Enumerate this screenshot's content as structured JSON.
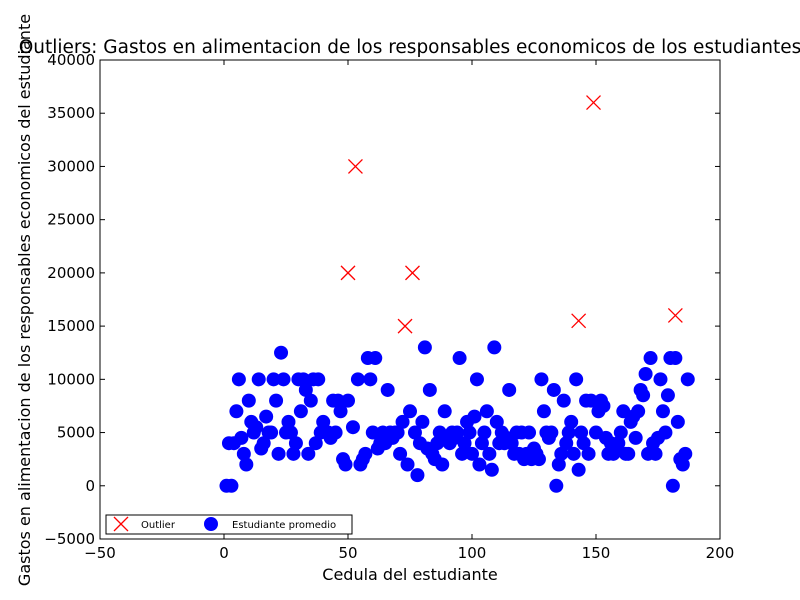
{
  "chart_data": {
    "type": "scatter",
    "title": "Outliers: Gastos en alimentacion de los responsables economicos de los estudiantes",
    "xlabel": "Cedula del estudiante",
    "ylabel": "Gastos en alimentacion de los responsables economicos del estudiante",
    "xlim": [
      -50,
      200
    ],
    "ylim": [
      -5000,
      40000
    ],
    "xticks": [
      "−50",
      "0",
      "50",
      "100",
      "150",
      "200"
    ],
    "yticks": [
      "−5000",
      "0",
      "5000",
      "10000",
      "15000",
      "20000",
      "25000",
      "30000",
      "35000",
      "40000"
    ],
    "grid": false,
    "legend_position": "bottom-left",
    "series": [
      {
        "name": "Outlier",
        "marker": "x",
        "color": "#ff0000",
        "points": [
          [
            50,
            20000
          ],
          [
            53,
            30000
          ],
          [
            73,
            15000
          ],
          [
            76,
            20000
          ],
          [
            143,
            15500
          ],
          [
            149,
            36000
          ],
          [
            182,
            16000
          ]
        ]
      },
      {
        "name": "Estudiante promedio",
        "marker": "circle",
        "color": "#0000ff",
        "points": [
          [
            1,
            0
          ],
          [
            2,
            4000
          ],
          [
            3,
            0
          ],
          [
            4,
            4000
          ],
          [
            5,
            7000
          ],
          [
            6,
            10000
          ],
          [
            7,
            4500
          ],
          [
            8,
            3000
          ],
          [
            9,
            2000
          ],
          [
            10,
            8000
          ],
          [
            11,
            6000
          ],
          [
            12,
            5000
          ],
          [
            13,
            5500
          ],
          [
            14,
            10000
          ],
          [
            15,
            3500
          ],
          [
            16,
            4000
          ],
          [
            17,
            6500
          ],
          [
            18,
            5000
          ],
          [
            19,
            5000
          ],
          [
            20,
            10000
          ],
          [
            21,
            8000
          ],
          [
            22,
            3000
          ],
          [
            23,
            12500
          ],
          [
            24,
            10000
          ],
          [
            25,
            5000
          ],
          [
            26,
            6000
          ],
          [
            27,
            5000
          ],
          [
            28,
            3000
          ],
          [
            29,
            4000
          ],
          [
            30,
            10000
          ],
          [
            31,
            7000
          ],
          [
            32,
            10000
          ],
          [
            33,
            9000
          ],
          [
            34,
            3000
          ],
          [
            35,
            8000
          ],
          [
            36,
            10000
          ],
          [
            37,
            4000
          ],
          [
            38,
            10000
          ],
          [
            39,
            5000
          ],
          [
            40,
            6000
          ],
          [
            42,
            5000
          ],
          [
            43,
            4500
          ],
          [
            44,
            8000
          ],
          [
            45,
            5000
          ],
          [
            46,
            8000
          ],
          [
            47,
            7000
          ],
          [
            48,
            2500
          ],
          [
            49,
            2000
          ],
          [
            50,
            8000
          ],
          [
            52,
            5500
          ],
          [
            54,
            10000
          ],
          [
            55,
            2000
          ],
          [
            56,
            2500
          ],
          [
            57,
            3000
          ],
          [
            58,
            12000
          ],
          [
            59,
            10000
          ],
          [
            60,
            5000
          ],
          [
            61,
            12000
          ],
          [
            62,
            3500
          ],
          [
            63,
            4000
          ],
          [
            64,
            5000
          ],
          [
            65,
            4000
          ],
          [
            66,
            9000
          ],
          [
            67,
            5000
          ],
          [
            68,
            4500
          ],
          [
            69,
            5000
          ],
          [
            70,
            5000
          ],
          [
            71,
            3000
          ],
          [
            72,
            6000
          ],
          [
            74,
            2000
          ],
          [
            75,
            7000
          ],
          [
            77,
            5000
          ],
          [
            78,
            1000
          ],
          [
            79,
            4000
          ],
          [
            80,
            6000
          ],
          [
            81,
            13000
          ],
          [
            82,
            3500
          ],
          [
            83,
            9000
          ],
          [
            84,
            3000
          ],
          [
            85,
            2500
          ],
          [
            86,
            4000
          ],
          [
            87,
            5000
          ],
          [
            88,
            2000
          ],
          [
            89,
            7000
          ],
          [
            90,
            4500
          ],
          [
            91,
            4000
          ],
          [
            92,
            5000
          ],
          [
            93,
            4500
          ],
          [
            94,
            5000
          ],
          [
            95,
            12000
          ],
          [
            96,
            3000
          ],
          [
            97,
            4000
          ],
          [
            98,
            6000
          ],
          [
            99,
            5000
          ],
          [
            100,
            3000
          ],
          [
            101,
            6500
          ],
          [
            102,
            10000
          ],
          [
            103,
            2000
          ],
          [
            104,
            4000
          ],
          [
            105,
            5000
          ],
          [
            106,
            7000
          ],
          [
            107,
            3000
          ],
          [
            108,
            1500
          ],
          [
            109,
            13000
          ],
          [
            110,
            6000
          ],
          [
            111,
            4000
          ],
          [
            112,
            5000
          ],
          [
            113,
            4000
          ],
          [
            114,
            4500
          ],
          [
            115,
            9000
          ],
          [
            116,
            4000
          ],
          [
            117,
            3000
          ],
          [
            118,
            5000
          ],
          [
            119,
            3000
          ],
          [
            120,
            5000
          ],
          [
            121,
            2500
          ],
          [
            122,
            3000
          ],
          [
            123,
            5000
          ],
          [
            124,
            2500
          ],
          [
            125,
            3500
          ],
          [
            126,
            3000
          ],
          [
            127,
            2500
          ],
          [
            128,
            10000
          ],
          [
            129,
            7000
          ],
          [
            130,
            5000
          ],
          [
            131,
            4500
          ],
          [
            132,
            5000
          ],
          [
            133,
            9000
          ],
          [
            134,
            0
          ],
          [
            135,
            2000
          ],
          [
            136,
            3000
          ],
          [
            137,
            8000
          ],
          [
            138,
            4000
          ],
          [
            139,
            5000
          ],
          [
            140,
            6000
          ],
          [
            141,
            3000
          ],
          [
            142,
            10000
          ],
          [
            143,
            1500
          ],
          [
            144,
            5000
          ],
          [
            145,
            4000
          ],
          [
            146,
            8000
          ],
          [
            147,
            3000
          ],
          [
            148,
            8000
          ],
          [
            150,
            5000
          ],
          [
            151,
            7000
          ],
          [
            152,
            8000
          ],
          [
            153,
            7500
          ],
          [
            154,
            4500
          ],
          [
            155,
            3000
          ],
          [
            156,
            4000
          ],
          [
            157,
            3000
          ],
          [
            158,
            3500
          ],
          [
            159,
            4000
          ],
          [
            160,
            5000
          ],
          [
            161,
            7000
          ],
          [
            162,
            3000
          ],
          [
            163,
            3000
          ],
          [
            164,
            6000
          ],
          [
            165,
            6500
          ],
          [
            166,
            4500
          ],
          [
            167,
            7000
          ],
          [
            168,
            9000
          ],
          [
            169,
            8500
          ],
          [
            170,
            10500
          ],
          [
            171,
            3000
          ],
          [
            172,
            12000
          ],
          [
            173,
            4000
          ],
          [
            174,
            3000
          ],
          [
            175,
            4500
          ],
          [
            176,
            10000
          ],
          [
            177,
            7000
          ],
          [
            178,
            5000
          ],
          [
            179,
            8500
          ],
          [
            180,
            12000
          ],
          [
            181,
            0
          ],
          [
            182,
            12000
          ],
          [
            183,
            6000
          ],
          [
            184,
            2500
          ],
          [
            185,
            2000
          ],
          [
            186,
            3000
          ],
          [
            187,
            10000
          ]
        ]
      }
    ]
  }
}
